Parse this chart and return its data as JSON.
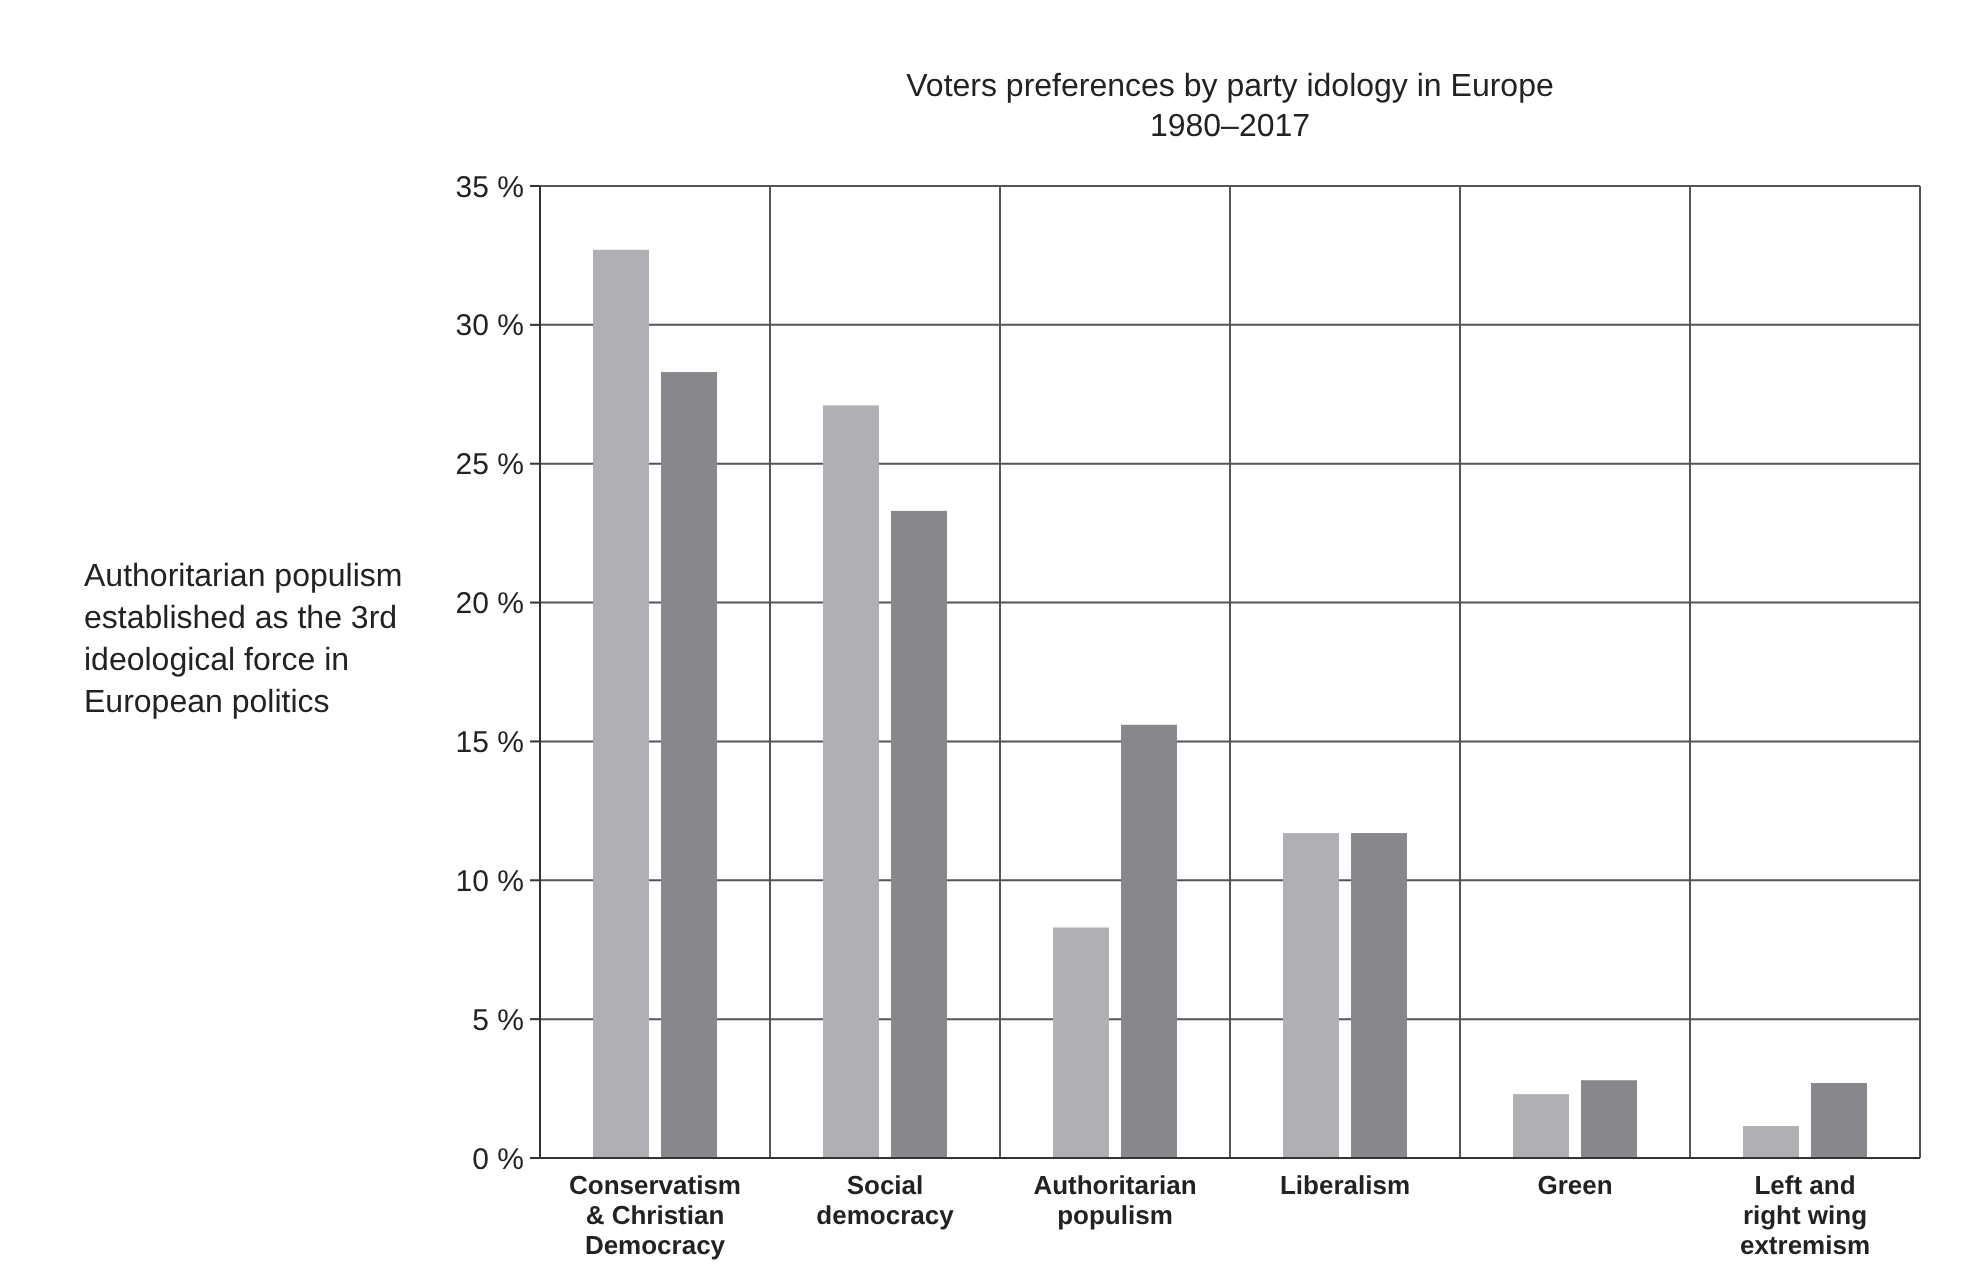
{
  "chart_data": {
    "type": "bar",
    "title": "Voters preferences by party idology in Europe",
    "subtitle": "1980–2017",
    "annotations": [
      "Authoritarian populism established as the 3rd ideological force in European politics"
    ],
    "categories": [
      "Conservatism & Christian Democracy",
      "Social democracy",
      "Authoritarian populism",
      "Liberalism",
      "Green",
      "Left and right wing extremism"
    ],
    "series": [
      {
        "color": "#b0b0b4",
        "values": [
          32.7,
          27.1,
          8.3,
          11.7,
          2.3,
          1.15
        ]
      },
      {
        "color": "#87878c",
        "values": [
          28.3,
          23.3,
          15.6,
          11.7,
          2.8,
          2.7
        ]
      }
    ],
    "ylim": [
      0,
      35
    ],
    "yticks": [
      {
        "value": 0,
        "label": "0 %"
      },
      {
        "value": 5,
        "label": "5 %"
      },
      {
        "value": 10,
        "label": "10 %"
      },
      {
        "value": 15,
        "label": "15 %"
      },
      {
        "value": 20,
        "label": "20 %"
      },
      {
        "value": 25,
        "label": "25 %"
      },
      {
        "value": 30,
        "label": "30 %"
      },
      {
        "value": 35,
        "label": "35 %"
      }
    ],
    "grid": true
  }
}
